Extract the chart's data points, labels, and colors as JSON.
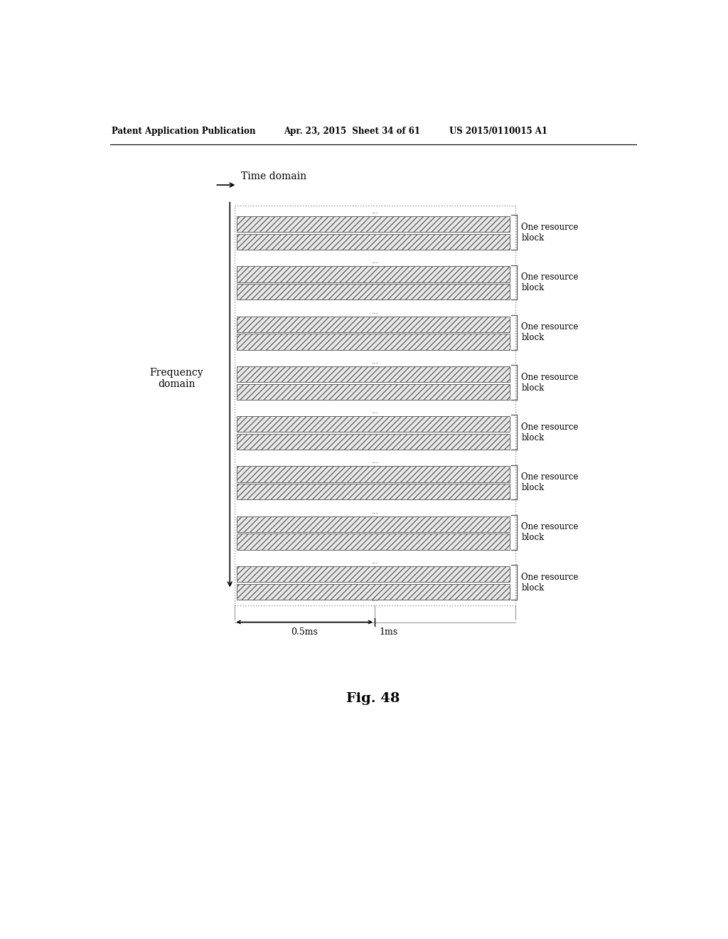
{
  "title_line1": "Patent Application Publication",
  "title_line2": "Apr. 23, 2015  Sheet 34 of 61",
  "title_line3": "US 2015/0110015 A1",
  "fig_label": "Fig. 48",
  "time_domain_label": "Time domain",
  "freq_domain_label": "Frequency\ndomain",
  "resource_block_label": "One resource\nblock",
  "num_blocks": 8,
  "dots_label": "...",
  "ms_05_label": "0.5ms",
  "ms_1_label": "1ms",
  "background_color": "#ffffff",
  "hatch_pattern": "////",
  "block_fill_color": "#e8e8e8"
}
